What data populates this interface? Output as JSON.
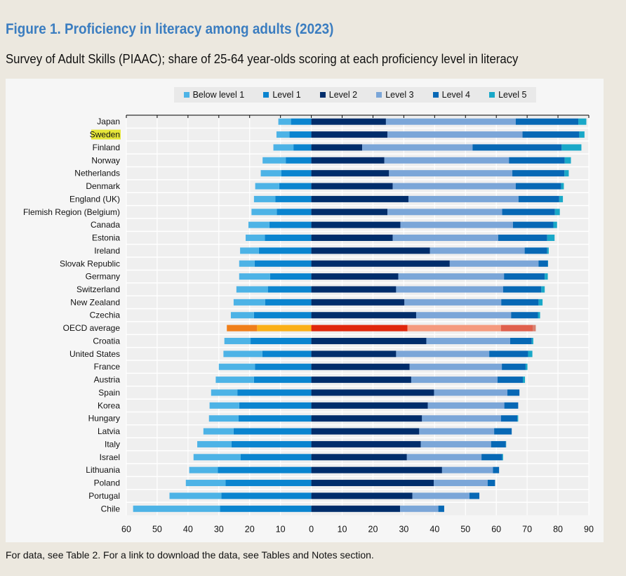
{
  "title": "Figure 1. Proficiency in literacy among adults (2023)",
  "subtitle": "Survey of Adult Skills (PIAAC); share of 25-64 year-olds scoring at each proficiency level in literacy",
  "footnote": "For data, see Table 2. For a link to download the data, see Tables and Notes section.",
  "chart_data": {
    "type": "bar",
    "orientation": "horizontal-diverging-stacked",
    "title": "Figure 1. Proficiency in literacy among adults (2023)",
    "xlim": [
      -60,
      90
    ],
    "xticks": [
      "60",
      "50",
      "40",
      "30",
      "20",
      "10",
      "0",
      "10",
      "20",
      "30",
      "40",
      "50",
      "60",
      "70",
      "80",
      "90"
    ],
    "legend_position": "top",
    "highlighted_category": "Sweden",
    "legend": [
      "Below level 1",
      "Level 1",
      "Level 2",
      "Level 3",
      "Level 4",
      "Level 5"
    ],
    "colors": [
      "#4db3e6",
      "#0a84cf",
      "#002d6b",
      "#7ba6d8",
      "#0768b5",
      "#19a8c8"
    ],
    "average_colors": [
      "#f07f1a",
      "#fbb017",
      "#e0270c",
      "#f59a7e",
      "#e0604d",
      "#d88070"
    ],
    "categories": [
      "Japan",
      "Sweden",
      "Finland",
      "Norway",
      "Netherlands",
      "Denmark",
      "England (UK)",
      "Flemish Region (Belgium)",
      "Canada",
      "Estonia",
      "Ireland",
      "Slovak Republic",
      "Germany",
      "Switzerland",
      "New Zealand",
      "Czechia",
      "OECD average",
      "Croatia",
      "United States",
      "France",
      "Austria",
      "Spain",
      "Korea",
      "Hungary",
      "Latvia",
      "Italy",
      "Israel",
      "Lithuania",
      "Poland",
      "Portugal",
      "Chile"
    ],
    "series": [
      {
        "name": "Below level 1",
        "values": [
          4.1,
          4.2,
          6.5,
          7.5,
          6.7,
          7.8,
          6.9,
          8.2,
          6.8,
          6.2,
          6.1,
          5.0,
          10.0,
          10.2,
          10.2,
          7.5,
          9.8,
          8.5,
          12.6,
          11.7,
          12.4,
          8.5,
          9.6,
          9.6,
          9.8,
          11.1,
          15.3,
          9.3,
          12.9,
          16.8,
          28.2
        ]
      },
      {
        "name": "Level 1",
        "values": [
          6.6,
          7.1,
          5.8,
          8.3,
          9.7,
          10.4,
          11.7,
          11.2,
          13.6,
          15.1,
          17.0,
          18.4,
          13.4,
          14.1,
          15.0,
          18.6,
          17.6,
          19.7,
          15.9,
          18.3,
          18.6,
          24.0,
          23.4,
          23.6,
          25.2,
          25.9,
          22.9,
          30.3,
          27.8,
          29.2,
          29.6
        ]
      },
      {
        "name": "Level 2",
        "values": [
          24.2,
          24.7,
          16.5,
          23.7,
          25.2,
          26.4,
          31.5,
          24.7,
          28.9,
          26.4,
          38.5,
          44.9,
          28.2,
          27.5,
          30.2,
          34.0,
          31.2,
          37.3,
          27.5,
          31.9,
          32.4,
          39.8,
          37.8,
          35.9,
          35.0,
          35.5,
          31.0,
          42.4,
          39.7,
          32.8,
          28.8
        ]
      },
      {
        "name": "Level 3",
        "values": [
          42.1,
          43.8,
          35.8,
          40.4,
          40.0,
          39.9,
          35.7,
          37.2,
          36.5,
          34.2,
          30.7,
          28.8,
          34.3,
          34.7,
          31.4,
          30.8,
          30.3,
          27.2,
          30.2,
          29.9,
          28.0,
          23.8,
          24.8,
          25.6,
          24.3,
          22.8,
          24.2,
          16.5,
          17.5,
          18.5,
          12.4
        ]
      },
      {
        "name": "Level 4",
        "values": [
          20.3,
          18.4,
          28.9,
          18.1,
          16.9,
          14.7,
          13.2,
          17.1,
          13.1,
          15.9,
          7.3,
          3.0,
          13.2,
          12.4,
          12.1,
          8.7,
          10.3,
          7.0,
          12.6,
          7.7,
          8.2,
          3.9,
          4.5,
          5.3,
          5.7,
          4.8,
          6.7,
          2.0,
          2.4,
          3.2,
          1.9
        ]
      },
      {
        "name": "Level 5",
        "values": [
          2.6,
          1.7,
          6.4,
          2.0,
          1.4,
          0.9,
          1.2,
          1.6,
          1.2,
          2.4,
          0.5,
          0.1,
          1.0,
          1.1,
          1.3,
          0.7,
          1.0,
          0.5,
          1.4,
          0.6,
          0.7,
          0.0,
          0.0,
          0.3,
          0.0,
          0.1,
          0.3,
          0.0,
          0.0,
          0.0,
          0.0
        ]
      }
    ]
  }
}
